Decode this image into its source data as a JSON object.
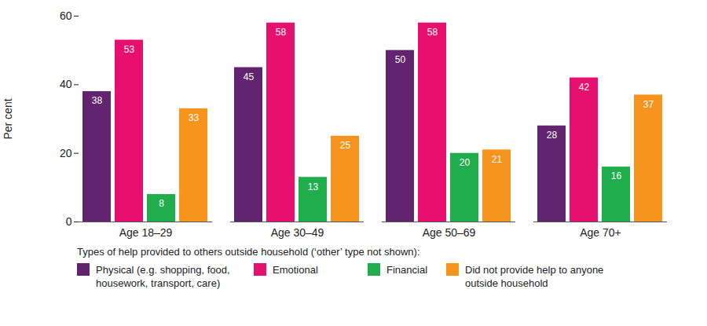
{
  "chart_data": {
    "type": "bar",
    "categories": [
      "Age 18–29",
      "Age 30–49",
      "Age 50–69",
      "Age 70+"
    ],
    "series": [
      {
        "name": "Physical (e.g. shopping, food, housework, transport, care)",
        "color": "#62246e",
        "values": [
          38,
          45,
          50,
          28
        ]
      },
      {
        "name": "Emotional",
        "color": "#e8106f",
        "values": [
          53,
          58,
          58,
          42
        ]
      },
      {
        "name": "Financial",
        "color": "#1fae4b",
        "values": [
          8,
          13,
          20,
          16
        ]
      },
      {
        "name": "Did not provide help to anyone outside household",
        "color": "#f7941d",
        "values": [
          33,
          25,
          21,
          37
        ]
      }
    ],
    "y_label": "Per cent",
    "legend_title": "Types of help provided to others outside household (‘other’ type not shown):",
    "ylim": [
      0,
      60
    ],
    "yticks": [
      0,
      20,
      40,
      60
    ],
    "grid": false,
    "data_labels": true,
    "legend": "bottom"
  }
}
